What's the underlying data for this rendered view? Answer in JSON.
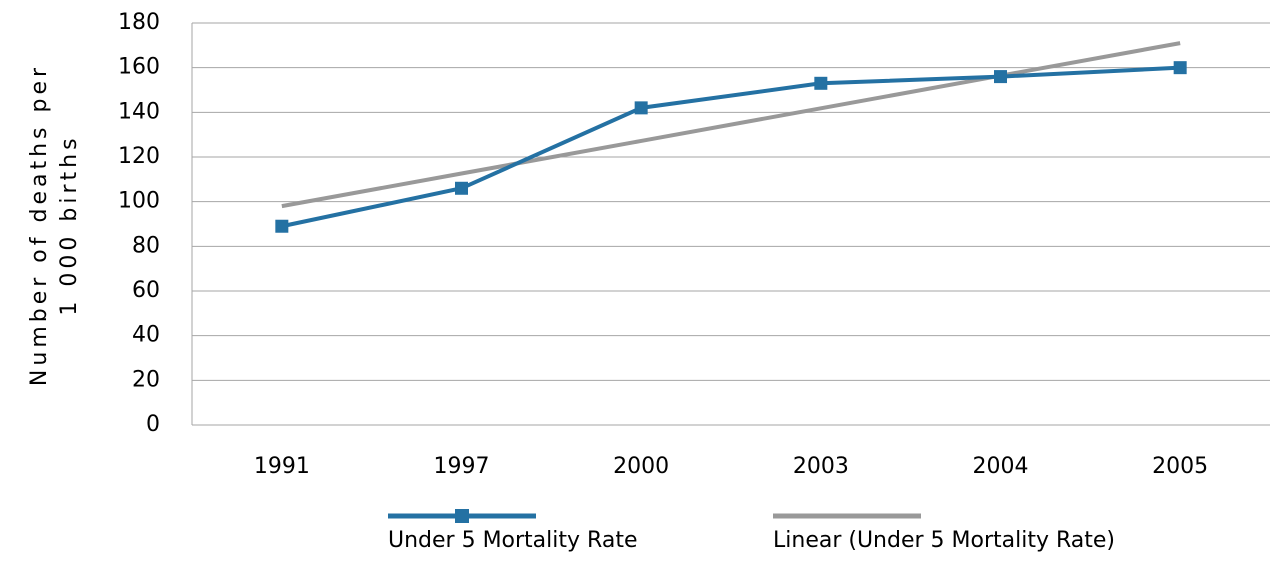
{
  "chart_data": {
    "type": "line",
    "ylabel": [
      "Number of deaths per",
      "1 000 births"
    ],
    "categories": [
      "1991",
      "1997",
      "2000",
      "2003",
      "2004",
      "2005"
    ],
    "series": [
      {
        "name": "Under 5 Mortality Rate",
        "color": "#2471a3",
        "marker": "square",
        "values": [
          89,
          106,
          142,
          153,
          156,
          160
        ]
      },
      {
        "name": "Linear (Under 5 Mortality Rate)",
        "color": "#999999",
        "marker": "none",
        "values": [
          98,
          112.6,
          127.2,
          141.8,
          156.4,
          171
        ]
      }
    ],
    "ylim": [
      0,
      180
    ],
    "yticks": [
      0,
      20,
      40,
      60,
      80,
      100,
      120,
      140,
      160,
      180
    ],
    "grid": true,
    "legend": "bottom"
  }
}
